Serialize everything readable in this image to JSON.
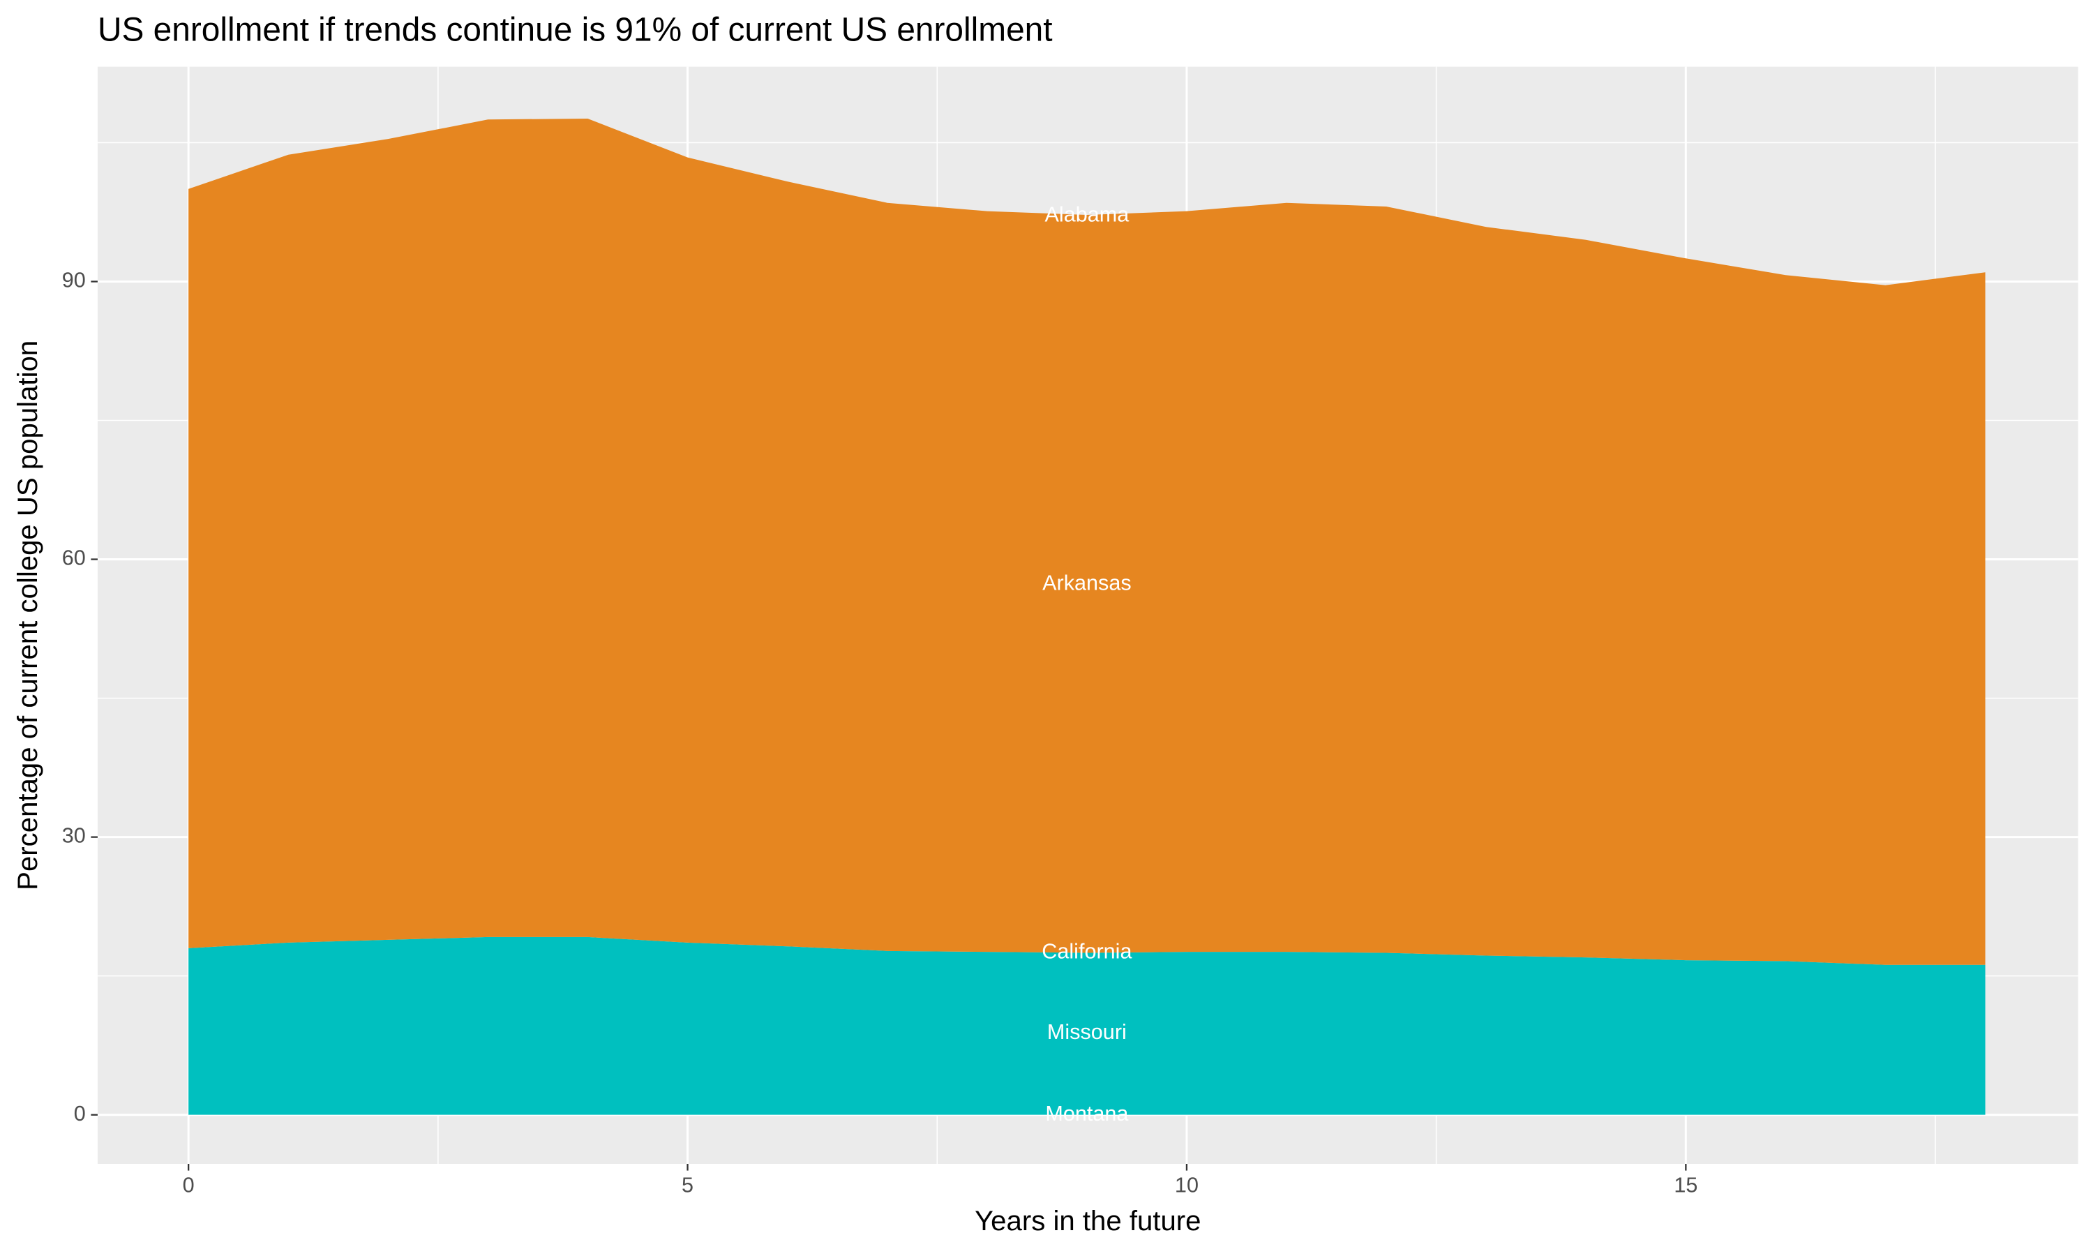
{
  "chart_data": {
    "type": "stacked_area",
    "title": "US enrollment if trends continue is 91% of current US enrollment",
    "x_label": "Years in the future",
    "y_label": "Percentage of current college US population",
    "x": [
      0,
      1,
      2,
      3,
      4,
      5,
      6,
      7,
      8,
      9,
      10,
      11,
      12,
      13,
      14,
      15,
      16,
      17,
      18
    ],
    "series": [
      {
        "color": "#00c0bf",
        "values": [
          18.0,
          18.6,
          18.9,
          19.2,
          19.2,
          18.6,
          18.2,
          17.7,
          17.6,
          17.5,
          17.6,
          17.6,
          17.5,
          17.2,
          17.0,
          16.7,
          16.6,
          16.2,
          16.2
        ]
      },
      {
        "color": "#e68620",
        "values": [
          82.0,
          85.1,
          86.5,
          88.3,
          88.4,
          84.8,
          82.6,
          80.8,
          80.0,
          79.7,
          80.0,
          80.9,
          80.6,
          78.7,
          77.5,
          75.8,
          74.1,
          73.4,
          74.8
        ]
      }
    ],
    "annotations": [
      {
        "text": "Alabama",
        "x": 9,
        "y": 97.1
      },
      {
        "text": "Arkansas",
        "x": 9,
        "y": 57.3
      },
      {
        "text": "California",
        "x": 9,
        "y": 17.5
      },
      {
        "text": "Missouri",
        "x": 9,
        "y": 8.8
      },
      {
        "text": "Montana",
        "x": 9,
        "y": 0
      }
    ],
    "xlim": [
      -0.91,
      18.93
    ],
    "ylim": [
      -5.3,
      113.2
    ],
    "xticks": [
      0,
      5,
      10,
      15
    ],
    "yticks": [
      0,
      30,
      60,
      90
    ],
    "minor_xticks": [
      2.5,
      7.5,
      12.5,
      17.5
    ],
    "minor_yticks": [
      15,
      45,
      75,
      105
    ],
    "grid": true
  }
}
